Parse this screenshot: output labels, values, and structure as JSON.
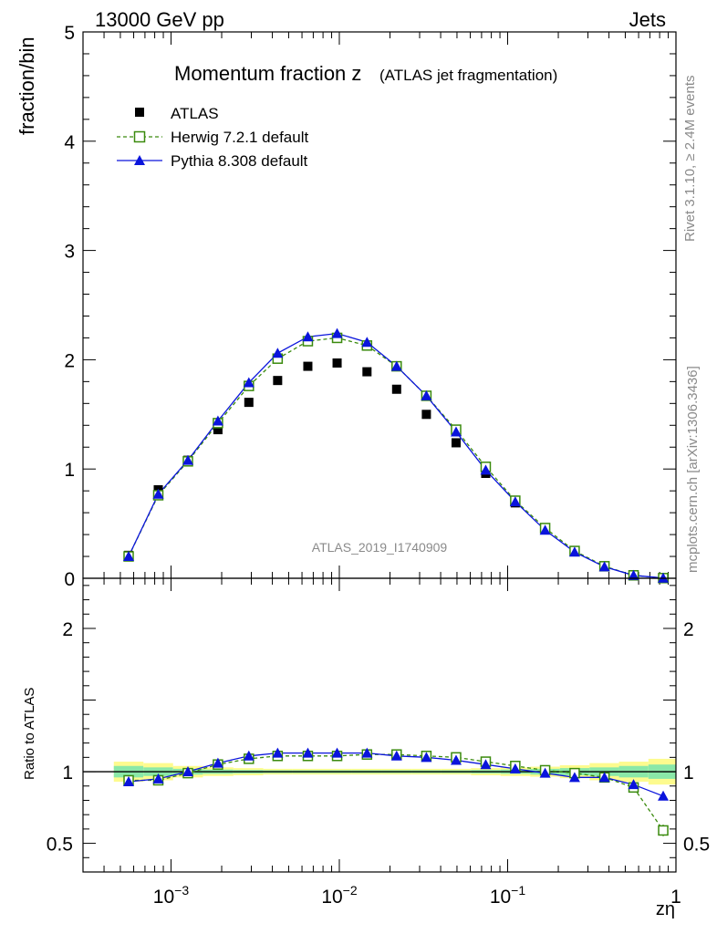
{
  "header": {
    "left": "13000 GeV pp",
    "right": "Jets"
  },
  "side_labels": {
    "rivet": "Rivet 3.1.10, ≥ 2.4M events",
    "mcplots": "mcplots.cern.ch [arXiv:1306.3436]"
  },
  "chart_data": {
    "type": "scatter",
    "title": "Momentum fraction z",
    "subtitle": "(ATLAS jet fragmentation)",
    "watermark": "ATLAS_2019_I1740909",
    "xlabel": "zη",
    "xscale": "log",
    "xlim": [
      0.0003,
      1
    ],
    "x_tick_labels": [
      {
        "base": "10",
        "exp": "−3",
        "value": 0.001
      },
      {
        "base": "10",
        "exp": "−2",
        "value": 0.01
      },
      {
        "base": "10",
        "exp": "−1",
        "value": 0.1
      },
      {
        "base": "1",
        "exp": "",
        "value": 1
      }
    ],
    "main": {
      "ylabel": "fraction/bin",
      "ylim": [
        0,
        5
      ],
      "y_ticks": [
        "0",
        "1",
        "2",
        "3",
        "4",
        "5"
      ]
    },
    "ratio": {
      "ylabel": "Ratio to ATLAS",
      "ylim": [
        0.3,
        2.35
      ],
      "y_ticks": [
        "0.5",
        "1",
        "2"
      ]
    },
    "colors": {
      "atlas": "#000000",
      "herwig": "#3a8a0d",
      "pythia": "#0a14dc",
      "band_inner": "#8ae8a8",
      "band_outer": "#fdfb8e"
    },
    "x": [
      0.00056,
      0.00084,
      0.00126,
      0.0019,
      0.0029,
      0.0043,
      0.0065,
      0.0097,
      0.0146,
      0.0219,
      0.0329,
      0.0494,
      0.0741,
      0.111,
      0.167,
      0.25,
      0.376,
      0.56,
      0.84
    ],
    "series": [
      {
        "name": "ATLAS",
        "marker": "square-filled",
        "values": [
          0.21,
          0.81,
          1.08,
          1.36,
          1.61,
          1.81,
          1.94,
          1.97,
          1.89,
          1.73,
          1.5,
          1.24,
          0.96,
          0.69,
          0.45,
          0.25,
          0.11,
          0.03,
          0.003
        ],
        "band_inner": [
          0.04,
          0.03,
          0.02,
          0.015,
          0.012,
          0.01,
          0.01,
          0.01,
          0.01,
          0.01,
          0.01,
          0.01,
          0.012,
          0.015,
          0.02,
          0.025,
          0.03,
          0.04,
          0.05
        ],
        "band_outer": [
          0.07,
          0.06,
          0.04,
          0.03,
          0.025,
          0.02,
          0.02,
          0.02,
          0.02,
          0.02,
          0.02,
          0.02,
          0.025,
          0.03,
          0.035,
          0.045,
          0.06,
          0.07,
          0.09
        ]
      },
      {
        "name": "Herwig 7.2.1 default",
        "marker": "square-open",
        "line": "dashed",
        "values": [
          0.2,
          0.76,
          1.07,
          1.42,
          1.76,
          2.01,
          2.17,
          2.2,
          2.13,
          1.94,
          1.67,
          1.36,
          1.02,
          0.71,
          0.46,
          0.25,
          0.11,
          0.027,
          0.0018
        ],
        "ratio": [
          0.94,
          0.94,
          0.99,
          1.05,
          1.09,
          1.11,
          1.11,
          1.11,
          1.12,
          1.12,
          1.11,
          1.1,
          1.07,
          1.04,
          1.01,
          0.99,
          0.96,
          0.89,
          0.59
        ],
        "ratio_err": [
          0,
          0,
          0,
          0,
          0,
          0,
          0,
          0,
          0,
          0,
          0,
          0,
          0,
          0,
          0,
          0,
          0,
          0.015,
          0.04
        ]
      },
      {
        "name": "Pythia 8.308 default",
        "marker": "triangle-filled",
        "line": "solid",
        "values": [
          0.2,
          0.77,
          1.08,
          1.44,
          1.79,
          2.06,
          2.21,
          2.24,
          2.16,
          1.94,
          1.67,
          1.34,
          0.99,
          0.7,
          0.44,
          0.24,
          0.105,
          0.027,
          0.0025
        ],
        "ratio": [
          0.93,
          0.95,
          1.0,
          1.06,
          1.11,
          1.13,
          1.13,
          1.13,
          1.13,
          1.11,
          1.1,
          1.08,
          1.05,
          1.02,
          0.99,
          0.96,
          0.96,
          0.91,
          0.83
        ],
        "ratio_err": [
          0,
          0,
          0,
          0,
          0,
          0,
          0,
          0,
          0,
          0,
          0,
          0,
          0,
          0,
          0,
          0,
          0,
          0.01,
          0.025
        ]
      }
    ]
  }
}
